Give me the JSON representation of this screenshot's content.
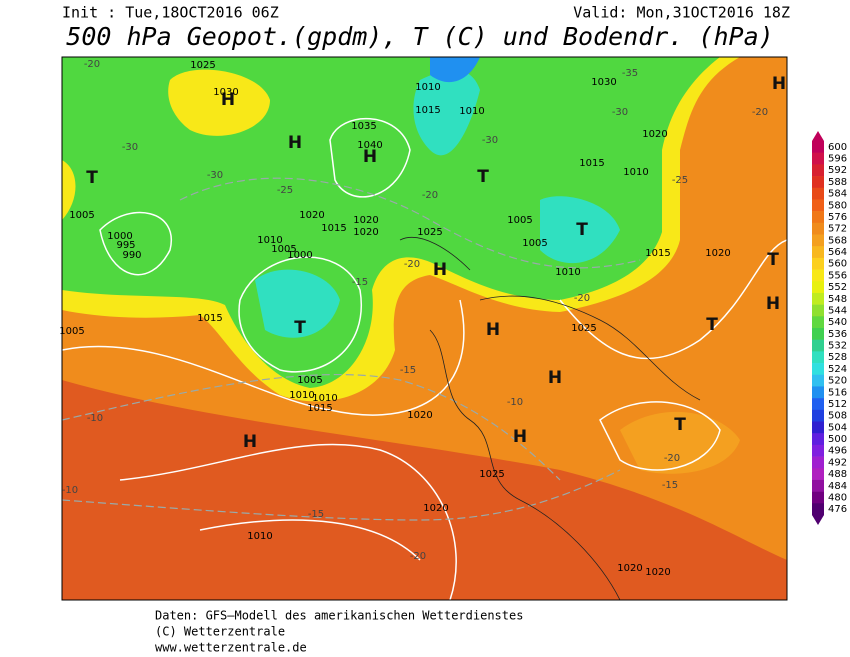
{
  "header": {
    "init": "Init : Tue,18OCT2016 06Z",
    "valid": "Valid: Mon,31OCT2016 18Z",
    "title": "500 hPa Geopot.(gpdm), T (C) und Bodendr. (hPa)"
  },
  "colorbar": {
    "levels": [
      600,
      596,
      592,
      588,
      584,
      580,
      576,
      572,
      568,
      564,
      560,
      556,
      552,
      548,
      544,
      540,
      536,
      532,
      528,
      524,
      520,
      516,
      512,
      508,
      504,
      500,
      496,
      492,
      488,
      484,
      480,
      476
    ],
    "colors": [
      "#c0005a",
      "#d0104a",
      "#d82030",
      "#e03020",
      "#e84a18",
      "#f06018",
      "#f07818",
      "#f08c1c",
      "#f4a020",
      "#f8b820",
      "#fcd020",
      "#f8e818",
      "#e8f010",
      "#c0ec20",
      "#90e030",
      "#60d840",
      "#40d050",
      "#30d090",
      "#30e0c0",
      "#30e0e0",
      "#30c0f0",
      "#2090f0",
      "#2060f0",
      "#2040e0",
      "#3020d0",
      "#6020e0",
      "#8020e0",
      "#a020d0",
      "#b020c0",
      "#9010a0",
      "#700080",
      "#500070"
    ]
  },
  "map": {
    "centers": [
      "H",
      "H",
      "H",
      "T",
      "T",
      "T",
      "H",
      "H",
      "H",
      "H",
      "H",
      "T",
      "H",
      "T",
      "T",
      "H",
      "T"
    ],
    "isobars": [
      1025,
      1030,
      1035,
      1040,
      1030,
      1010,
      1015,
      1010,
      1020,
      1015,
      1010,
      1005,
      1000,
      995,
      990,
      1005,
      1010,
      1020,
      1015,
      1025,
      1020,
      1020,
      1010,
      1005,
      1005,
      1010,
      1015,
      1020,
      1025,
      1020,
      1010,
      1015,
      1020,
      1025,
      1020,
      1020,
      1005,
      1000,
      1005,
      1010,
      1015
    ],
    "temps": [
      -20,
      -30,
      -25,
      -30,
      -35,
      -30,
      -30,
      -20,
      -20,
      -25,
      -20,
      -15,
      -15,
      -10,
      -10,
      -10,
      -15,
      -20,
      -15,
      -20,
      -20
    ]
  },
  "footer": {
    "line1": "Daten: GFS–Modell des amerikanischen Wetterdienstes",
    "line2": "(C) Wetterzentrale",
    "line3": "www.wetterzentrale.de"
  }
}
